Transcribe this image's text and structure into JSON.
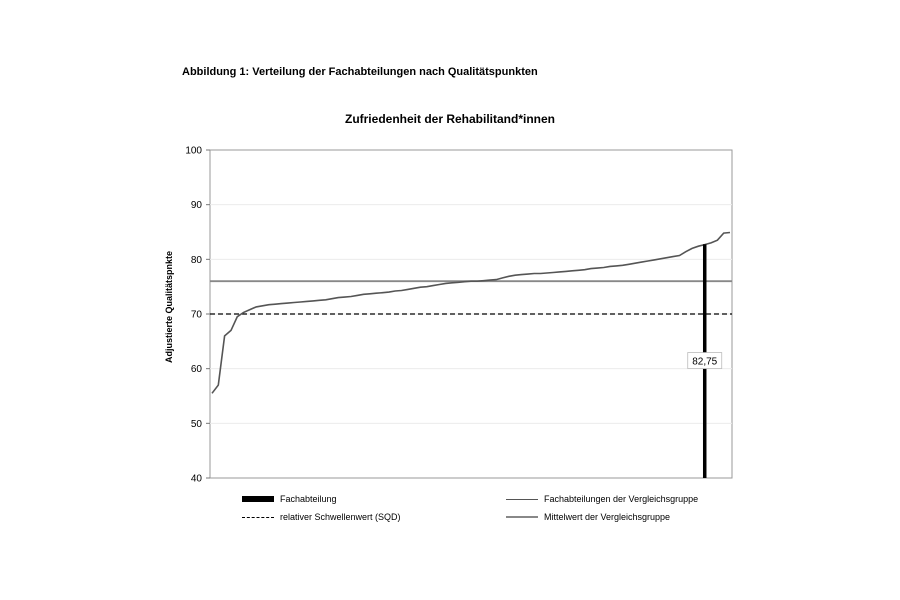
{
  "caption": "Abbildung 1: Verteilung der Fachabteilungen nach Qualitätspunkten",
  "chart_data": {
    "type": "line",
    "title": "Zufriedenheit der Rehabilitand*innen",
    "xlabel": "",
    "ylabel": "Adjustierte Qualitätspnkte",
    "ylim": [
      40,
      100
    ],
    "yticks": [
      "40",
      "50",
      "60",
      "70",
      "80",
      "90",
      "100"
    ],
    "grid": true,
    "legend_position": "bottom",
    "series": [
      {
        "name": "Fachabteilungen der Vergleichsgruppe",
        "color": "#555555",
        "values": [
          55.5,
          57,
          66,
          67,
          69.5,
          70.3,
          70.8,
          71.3,
          71.5,
          71.7,
          71.8,
          71.9,
          72.0,
          72.1,
          72.2,
          72.3,
          72.4,
          72.5,
          72.6,
          72.8,
          73.0,
          73.1,
          73.2,
          73.4,
          73.6,
          73.7,
          73.8,
          73.9,
          74.0,
          74.2,
          74.3,
          74.5,
          74.7,
          74.9,
          75.0,
          75.2,
          75.4,
          75.6,
          75.7,
          75.8,
          75.9,
          76.0,
          76.0,
          76.1,
          76.2,
          76.3,
          76.6,
          76.9,
          77.1,
          77.2,
          77.3,
          77.4,
          77.4,
          77.5,
          77.6,
          77.7,
          77.8,
          77.9,
          78.0,
          78.1,
          78.3,
          78.4,
          78.5,
          78.7,
          78.8,
          78.9,
          79.1,
          79.3,
          79.5,
          79.7,
          79.9,
          80.1,
          80.3,
          80.5,
          80.7,
          81.4,
          82.0,
          82.4,
          82.7,
          83.0,
          83.5,
          84.8,
          84.9
        ]
      }
    ],
    "threshold": {
      "name": "relativer Schwellenwert (SQD)",
      "value": 70,
      "color": "#000000"
    },
    "mean": {
      "name": "Mittelwert der Vergleichsgruppe",
      "value": 76,
      "color": "#888888"
    },
    "highlight": {
      "name": "Fachabteilung",
      "value": 82.75,
      "label": "82,75",
      "position_index": 78,
      "color": "#000000"
    }
  }
}
